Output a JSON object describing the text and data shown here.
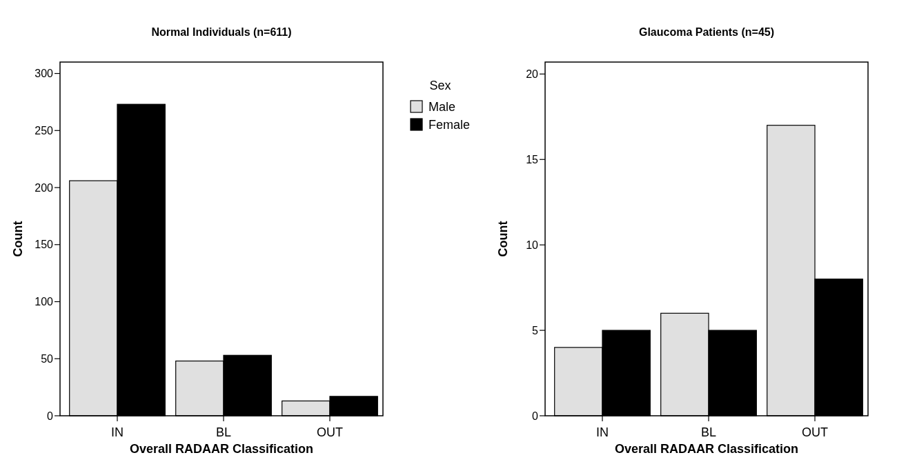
{
  "chart_data": [
    {
      "type": "bar",
      "title": "Normal Individuals (n=611)",
      "xlabel": "Overall RADAAR Classification",
      "ylabel": "Count",
      "categories": [
        "IN",
        "BL",
        "OUT"
      ],
      "series": [
        {
          "name": "Male",
          "color": "#e0e0e0",
          "values": [
            206,
            48,
            13
          ]
        },
        {
          "name": "Female",
          "color": "#000000",
          "values": [
            273,
            53,
            17
          ]
        }
      ],
      "ylim": [
        0,
        310
      ],
      "yticks": [
        0,
        50,
        100,
        150,
        200,
        250,
        300
      ],
      "legend": "top right",
      "legend_title": "Sex"
    },
    {
      "type": "bar",
      "title": "Glaucoma Patients (n=45)",
      "xlabel": "Overall RADAAR Classification",
      "ylabel": "Count",
      "categories": [
        "IN",
        "BL",
        "OUT"
      ],
      "series": [
        {
          "color": "#e0e0e0",
          "values": [
            4,
            6,
            17
          ]
        },
        {
          "color": "#000000",
          "values": [
            5,
            5,
            8
          ]
        }
      ],
      "ylim": [
        0,
        20.7
      ],
      "yticks": [
        0,
        5,
        10,
        15,
        20
      ]
    }
  ]
}
